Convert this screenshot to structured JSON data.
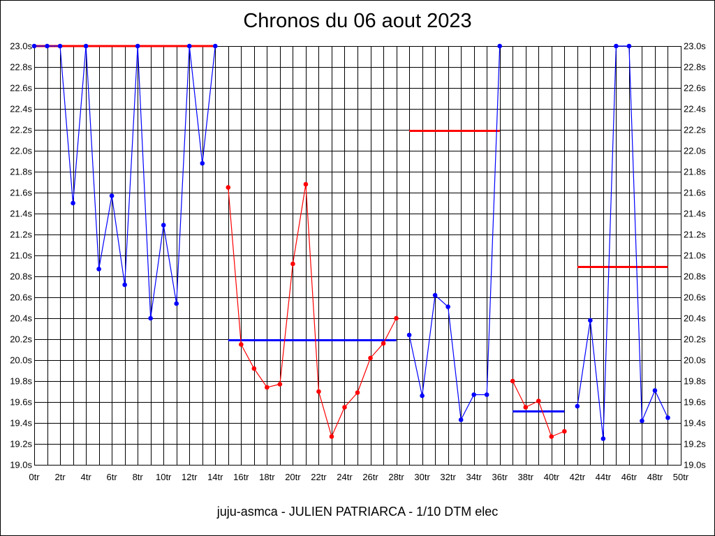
{
  "title": "Chronos du 06 aout 2023",
  "footer": "juju-asmca - JULIEN PATRIARCA - 1/10 DTM elec",
  "colors": {
    "blue": "#0000ff",
    "red": "#ff0000",
    "grid": "#000000",
    "background": "#ffffff"
  },
  "chart_data": {
    "type": "line",
    "title": "Chronos du 06 aout 2023",
    "xlabel": "",
    "ylabel": "",
    "xlim": [
      0,
      50
    ],
    "ylim": [
      19.0,
      23.0
    ],
    "grid": true,
    "x_tick_labels": [
      "0tr",
      "2tr",
      "4tr",
      "6tr",
      "8tr",
      "10tr",
      "12tr",
      "14tr",
      "16tr",
      "18tr",
      "20tr",
      "22tr",
      "24tr",
      "26tr",
      "28tr",
      "30tr",
      "32tr",
      "34tr",
      "36tr",
      "38tr",
      "40tr",
      "42tr",
      "44tr",
      "46tr",
      "48tr",
      "50tr"
    ],
    "y_tick_labels": [
      "19.0s",
      "19.2s",
      "19.4s",
      "19.6s",
      "19.8s",
      "20.0s",
      "20.2s",
      "20.4s",
      "20.6s",
      "20.8s",
      "21.0s",
      "21.2s",
      "21.4s",
      "21.6s",
      "21.8s",
      "22.0s",
      "22.2s",
      "22.4s",
      "22.6s",
      "22.8s",
      "23.0s"
    ],
    "series": [
      {
        "color": "#0000ff",
        "x": [
          0,
          1,
          2,
          3,
          4,
          5,
          6,
          7,
          8,
          9,
          10,
          11,
          12,
          13,
          14
        ],
        "y": [
          23.0,
          23.0,
          23.0,
          21.5,
          23.0,
          20.87,
          21.57,
          20.72,
          23.0,
          20.4,
          21.29,
          20.54,
          23.0,
          21.88,
          23.0
        ]
      },
      {
        "color": "#ff0000",
        "x": [
          15,
          16,
          17,
          18,
          19,
          20,
          21,
          22,
          23,
          24,
          25,
          26,
          27,
          28
        ],
        "y": [
          21.65,
          20.15,
          19.92,
          19.74,
          19.77,
          20.92,
          21.68,
          19.7,
          19.27,
          19.55,
          19.69,
          20.02,
          20.16,
          20.4
        ]
      },
      {
        "color": "#0000ff",
        "x": [
          29,
          30,
          31,
          32,
          33,
          34,
          35,
          36
        ],
        "y": [
          20.24,
          19.66,
          20.62,
          20.51,
          19.43,
          19.67,
          19.67,
          23.0
        ]
      },
      {
        "color": "#ff0000",
        "x": [
          37,
          38,
          39,
          40,
          41
        ],
        "y": [
          19.8,
          19.55,
          19.61,
          19.27,
          19.32
        ]
      },
      {
        "color": "#0000ff",
        "x": [
          42,
          43,
          44,
          45,
          46,
          47,
          48,
          49
        ],
        "y": [
          19.56,
          20.38,
          19.25,
          23.0,
          23.0,
          19.42,
          19.71,
          19.45
        ]
      }
    ],
    "average_lines": [
      {
        "color": "#ff0000",
        "x": [
          0,
          14
        ],
        "y": 23.0
      },
      {
        "color": "#0000ff",
        "x": [
          15,
          28
        ],
        "y": 20.19
      },
      {
        "color": "#ff0000",
        "x": [
          29,
          36
        ],
        "y": 22.19
      },
      {
        "color": "#0000ff",
        "x": [
          37,
          41
        ],
        "y": 19.51
      },
      {
        "color": "#ff0000",
        "x": [
          42,
          49
        ],
        "y": 20.89
      }
    ]
  }
}
